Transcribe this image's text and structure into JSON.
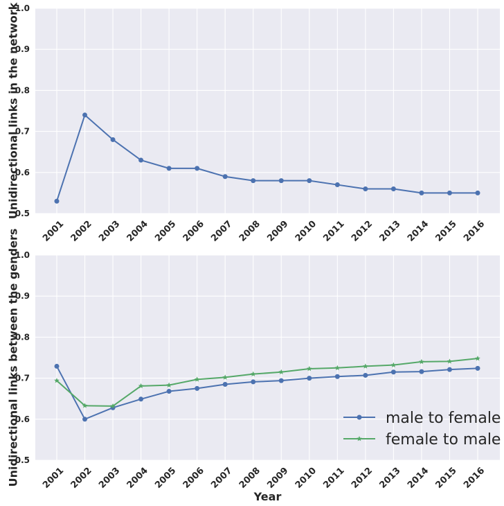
{
  "chart_data": [
    {
      "type": "line",
      "ylabel": "Unidirectional links in the network",
      "xlabel": "",
      "ylim": [
        0.5,
        1.0
      ],
      "yticks": [
        "0.5",
        "0.6",
        "0.7",
        "0.8",
        "0.9",
        "1.0"
      ],
      "categories": [
        "2001",
        "2002",
        "2003",
        "2004",
        "2005",
        "2006",
        "2007",
        "2008",
        "2009",
        "2010",
        "2011",
        "2012",
        "2013",
        "2014",
        "2015",
        "2016"
      ],
      "grid": true,
      "series": [
        {
          "values": [
            0.53,
            0.74,
            0.68,
            0.63,
            0.61,
            0.61,
            0.59,
            0.58,
            0.58,
            0.58,
            0.57,
            0.56,
            0.56,
            0.55,
            0.55,
            0.55
          ],
          "color": "#4c72b0",
          "marker": "circle"
        }
      ]
    },
    {
      "type": "line",
      "ylabel": "Unidirectional links between the genders",
      "xlabel": "Year",
      "ylim": [
        0.5,
        1.0
      ],
      "yticks": [
        "0.5",
        "0.6",
        "0.7",
        "0.8",
        "0.9",
        "1.0"
      ],
      "categories": [
        "2001",
        "2002",
        "2003",
        "2004",
        "2005",
        "2006",
        "2007",
        "2008",
        "2009",
        "2010",
        "2011",
        "2012",
        "2013",
        "2014",
        "2015",
        "2016"
      ],
      "grid": true,
      "legend": "bottom-right",
      "series": [
        {
          "name": "male to female",
          "values": [
            0.729,
            0.6,
            0.628,
            0.649,
            0.668,
            0.675,
            0.685,
            0.691,
            0.694,
            0.7,
            0.704,
            0.707,
            0.715,
            0.716,
            0.721,
            0.724
          ],
          "color": "#4c72b0",
          "marker": "circle"
        },
        {
          "name": "female to male",
          "values": [
            0.694,
            0.633,
            0.632,
            0.681,
            0.683,
            0.697,
            0.702,
            0.71,
            0.715,
            0.723,
            0.725,
            0.729,
            0.732,
            0.74,
            0.741,
            0.748
          ],
          "color": "#55a868",
          "marker": "star"
        }
      ]
    }
  ]
}
